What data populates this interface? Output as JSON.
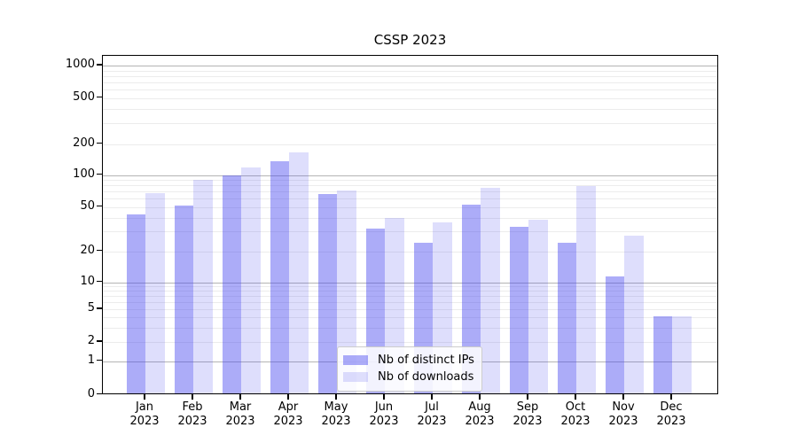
{
  "title": "CSSP 2023",
  "legend": {
    "items": [
      {
        "label": "Nb of distinct IPs"
      },
      {
        "label": "Nb of downloads"
      }
    ]
  },
  "colors": {
    "bar_distinct_ips": "rgba(70,70,240,0.45)",
    "bar_downloads": "rgba(70,70,240,0.18)",
    "grid_major": "#b4b4b4",
    "grid_minor": "#ececec",
    "axis": "#000000"
  },
  "chart_data": {
    "type": "bar",
    "title": "CSSP 2023",
    "categories": [
      "Jan 2023",
      "Feb 2023",
      "Mar 2023",
      "Apr 2023",
      "May 2023",
      "Jun 2023",
      "Jul 2023",
      "Aug 2023",
      "Sep 2023",
      "Oct 2023",
      "Nov 2023",
      "Dec 2023"
    ],
    "series": [
      {
        "name": "Nb of distinct IPs",
        "values": [
          42,
          50,
          97,
          133,
          64,
          31,
          23,
          51,
          32,
          23,
          11,
          4
        ]
      },
      {
        "name": "Nb of downloads",
        "values": [
          66,
          88,
          115,
          160,
          70,
          39,
          35,
          73,
          37,
          76,
          27,
          4
        ]
      }
    ],
    "yscale": "symlog",
    "yticks": [
      0,
      1,
      2,
      5,
      10,
      20,
      50,
      100,
      200,
      500,
      1000
    ],
    "ylim": [
      0,
      1250
    ],
    "grid": true,
    "legend_position": "lower center"
  }
}
